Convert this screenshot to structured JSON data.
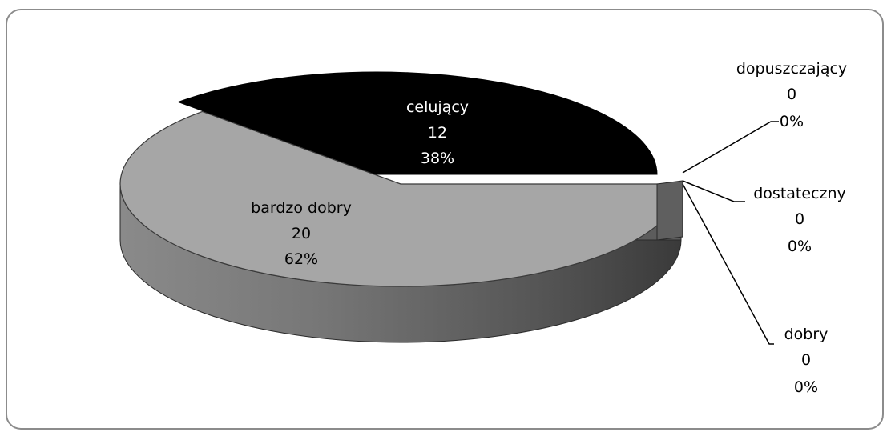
{
  "chart_data": {
    "type": "pie",
    "title": "",
    "style": "3d-exploded",
    "categories": [
      "celujący",
      "bardzo dobry",
      "dobry",
      "dostateczny",
      "dopuszczający"
    ],
    "values": [
      12,
      20,
      0,
      0,
      0
    ],
    "percents": [
      "38%",
      "62%",
      "0%",
      "0%",
      "0%"
    ],
    "colors": {
      "celujący": "#000000",
      "bardzo dobry": "#a6a6a6",
      "dobry": "#5f5f5f",
      "dostateczny": "#5f5f5f",
      "dopuszczający": "#5f5f5f"
    },
    "legend": "none",
    "data_labels": "inside-or-callout"
  },
  "labels": {
    "celujacy": {
      "name": "celujący",
      "value": "12",
      "percent": "38%"
    },
    "bardzo_dobry": {
      "name": "bardzo dobry",
      "value": "20",
      "percent": "62%"
    },
    "dopuszczajacy": {
      "name": "dopuszczający",
      "value": "0",
      "percent": "0%"
    },
    "dostateczny": {
      "name": "dostateczny",
      "value": "0",
      "percent": "0%"
    },
    "dobry": {
      "name": "dobry",
      "value": "0",
      "percent": "0%"
    }
  }
}
